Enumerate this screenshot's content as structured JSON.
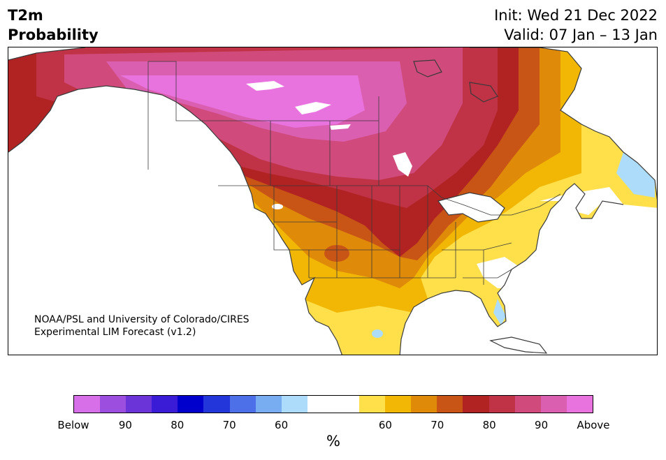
{
  "header": {
    "title_line1": "T2m",
    "title_line2": "Probability",
    "init_text": "Init: Wed 21 Dec 2022",
    "valid_text": "Valid: 07 Jan – 13 Jan"
  },
  "map": {
    "credit_line1": "NOAA/PSL and University of Colorado/CIRES",
    "credit_line2": "Experimental LIM Forecast (v1.2)",
    "region": "North America"
  },
  "colorbar": {
    "segments": [
      "#d66fe8",
      "#9c4fde",
      "#6b34d8",
      "#3a1cd6",
      "#0000cc",
      "#2236da",
      "#4d6fe8",
      "#79adf2",
      "#addcfb",
      "#ffffff",
      "#ffffff",
      "#ffe04a",
      "#f2b705",
      "#e08a0a",
      "#c85416",
      "#b12222",
      "#c03246",
      "#d04b7c",
      "#db5fb0",
      "#e872de"
    ],
    "tick_labels": [
      "Below",
      "90",
      "80",
      "70",
      "60",
      "60",
      "70",
      "80",
      "90",
      "Above"
    ],
    "unit_label": "%"
  },
  "colors": {
    "outline": "#3a3a3a"
  }
}
